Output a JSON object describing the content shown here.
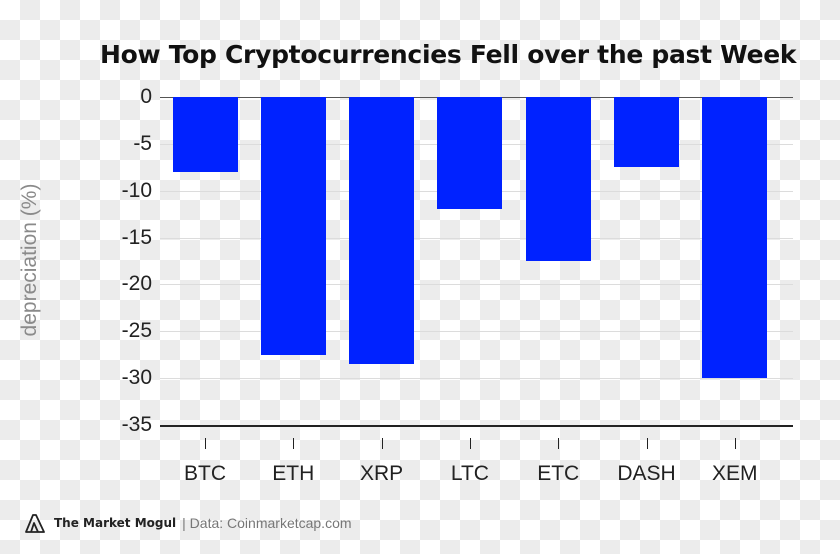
{
  "chart_data": {
    "type": "bar",
    "title": "How Top Cryptocurrencies Fell over the past Week",
    "xlabel": "",
    "ylabel": "depreciation (%)",
    "categories": [
      "BTC",
      "ETH",
      "XRP",
      "LTC",
      "ETC",
      "DASH",
      "XEM"
    ],
    "values": [
      -8.0,
      -27.5,
      -28.5,
      -12.0,
      -17.5,
      -7.5,
      -30.0
    ],
    "ylim": [
      -35,
      0
    ],
    "yticks": [
      0,
      -5,
      -10,
      -15,
      -20,
      -25,
      -30,
      -35
    ],
    "grid": true,
    "bar_color": "#0022ff"
  },
  "footer": {
    "brand": "The Market Mogul",
    "source": "| Data: Coinmarketcap.com"
  }
}
